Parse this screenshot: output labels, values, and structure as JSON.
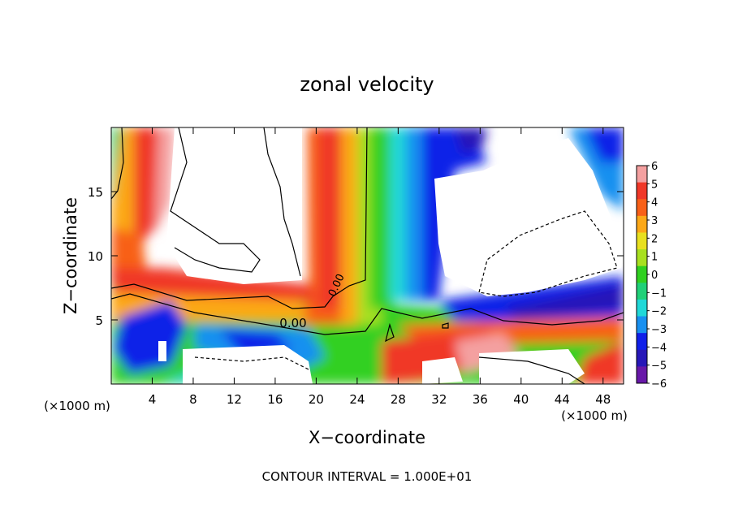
{
  "chart_data": {
    "type": "heatmap",
    "title": "zonal velocity",
    "xlabel": "X−coordinate",
    "ylabel": "Z−coordinate",
    "x_unit_left": "(×1000 m)",
    "x_unit_right": "(×1000 m)",
    "footer": "CONTOUR INTERVAL = 1.000E+01",
    "contour_label": "0.00",
    "xlim": [
      0,
      50
    ],
    "ylim": [
      0,
      20
    ],
    "x_ticks": [
      4,
      8,
      12,
      16,
      20,
      24,
      28,
      32,
      36,
      40,
      44,
      48
    ],
    "y_ticks": [
      5,
      10,
      15
    ],
    "x_tick_labels": [
      "4",
      "8",
      "12",
      "16",
      "20",
      "24",
      "28",
      "32",
      "36",
      "40",
      "44",
      "48"
    ],
    "y_tick_labels": [
      "5",
      "10",
      "15"
    ],
    "colorbar": {
      "range": [
        -6,
        6
      ],
      "labels": [
        "6",
        "5",
        "4",
        "3",
        "2",
        "1",
        "0",
        "−1",
        "−2",
        "−3",
        "−4",
        "−5",
        "−6"
      ],
      "colors": [
        "#f4a0a0",
        "#f03828",
        "#f86018",
        "#fca818",
        "#e8e020",
        "#a8e020",
        "#30d020",
        "#20d078",
        "#20d8d8",
        "#1890f0",
        "#1020e8",
        "#2818b8",
        "#6818a8"
      ]
    },
    "field": {
      "description_out_of_range": "white",
      "features": [
        {
          "name": "red-jet-center",
          "x": 21,
          "z_from": 8,
          "z_to": 20,
          "value": 5
        },
        {
          "name": "green-core",
          "x": 25,
          "z_from": 5,
          "z_to": 20,
          "value": 0
        },
        {
          "name": "blue-band-right",
          "x": 31,
          "z_from": 7,
          "z_to": 20,
          "value": -4
        },
        {
          "name": "red-left-column",
          "x": 4,
          "z_from": 8,
          "z_to": 20,
          "value": 5
        },
        {
          "name": "blue-lower-left",
          "x": 6,
          "z_from": 1,
          "z_to": 5,
          "value": -4
        },
        {
          "name": "red-lower-right",
          "x": 36,
          "z_from": 0,
          "z_to": 5,
          "value": 4
        }
      ]
    }
  }
}
